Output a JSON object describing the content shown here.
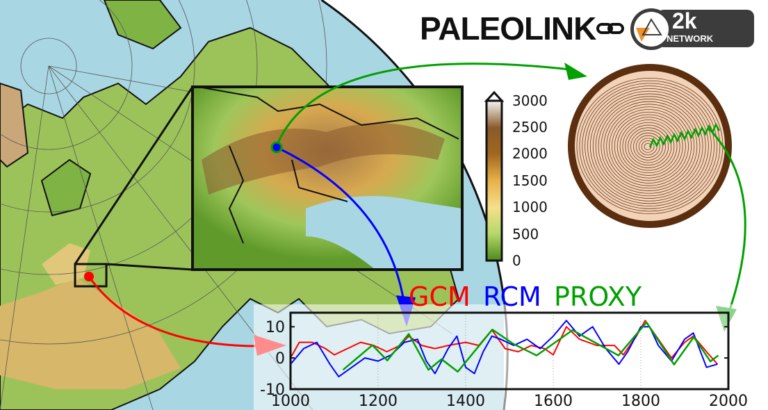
{
  "brand": {
    "title": "PALEOLINK",
    "partner_logo": {
      "number": "2k",
      "word": "NETWORK"
    },
    "link_icon": "chain-link-icon"
  },
  "colorbar": {
    "ticks": [
      "3000",
      "2500",
      "2000",
      "1500",
      "1000",
      "500",
      "0"
    ],
    "colors": [
      "#f5f5f5",
      "#8a5a2b",
      "#a0661e",
      "#e8b04a",
      "#f5e08a",
      "#b5d96a",
      "#4d8a1c"
    ]
  },
  "legend": {
    "items": [
      {
        "label": "GCM",
        "color": "#ff0000"
      },
      {
        "label": "RCM",
        "color": "#0000ff"
      },
      {
        "label": "PROXY",
        "color": "#00a000"
      }
    ]
  },
  "arrows": {
    "gcm": "#ff0000",
    "rcm": "#0000ff",
    "proxy": "#00a000"
  },
  "chart_data": {
    "type": "line",
    "xlim": [
      1000,
      2000
    ],
    "ylim": [
      -10,
      14.5
    ],
    "xticks": [
      "1000",
      "1200",
      "1400",
      "1600",
      "1800",
      "2000"
    ],
    "yticks": [
      "10",
      "0",
      "-10"
    ],
    "grid": "vertical dotted",
    "series": [
      {
        "name": "GCM",
        "color": "#ff0000",
        "x": [
          1000,
          1020,
          1050,
          1080,
          1100,
          1130,
          1160,
          1190,
          1220,
          1250,
          1270,
          1300,
          1330,
          1360,
          1400,
          1430,
          1460,
          1490,
          1520,
          1550,
          1580,
          1600,
          1630,
          1660,
          1700,
          1740,
          1760,
          1790,
          1810,
          1840,
          1870,
          1900,
          1920,
          1950,
          1975
        ],
        "y": [
          0,
          5,
          5,
          3,
          1,
          3,
          5,
          4,
          2,
          4,
          7,
          4,
          3,
          4,
          5,
          4,
          9,
          3,
          2,
          4,
          3,
          1,
          10,
          6,
          4,
          4,
          1,
          7,
          12,
          6,
          0,
          5,
          7,
          2,
          -2
        ]
      },
      {
        "name": "RCM",
        "color": "#0000ff",
        "x": [
          1000,
          1030,
          1060,
          1090,
          1110,
          1140,
          1170,
          1200,
          1230,
          1260,
          1290,
          1310,
          1330,
          1360,
          1380,
          1400,
          1420,
          1440,
          1460,
          1480,
          1510,
          1540,
          1570,
          1600,
          1630,
          1660,
          1690,
          1720,
          1750,
          1770,
          1800,
          1820,
          1840,
          1870,
          1900,
          1920,
          1950,
          1975
        ],
        "y": [
          -2,
          3,
          5,
          -2,
          -6,
          -3,
          0,
          -1,
          1,
          5,
          6,
          -1,
          -5,
          3,
          7,
          -3,
          -5,
          2,
          7,
          6,
          4,
          6,
          3,
          7,
          12,
          7,
          10,
          3,
          -2,
          2,
          10,
          10,
          4,
          -1,
          6,
          8,
          -3,
          -2
        ]
      },
      {
        "name": "PROXY",
        "color": "#00a000",
        "x": [
          1120,
          1187,
          1221,
          1270,
          1315,
          1345,
          1382,
          1461,
          1509,
          1562,
          1644,
          1749,
          1813,
          1876,
          1921,
          1959,
          1977
        ],
        "y": [
          -3.8,
          4.1,
          -0.8,
          7.7,
          -3.8,
          -0.4,
          -4.4,
          9.1,
          4.5,
          0.8,
          8.9,
          0.8,
          11.4,
          -2.1,
          6.7,
          -1.1,
          0.8
        ]
      }
    ]
  }
}
